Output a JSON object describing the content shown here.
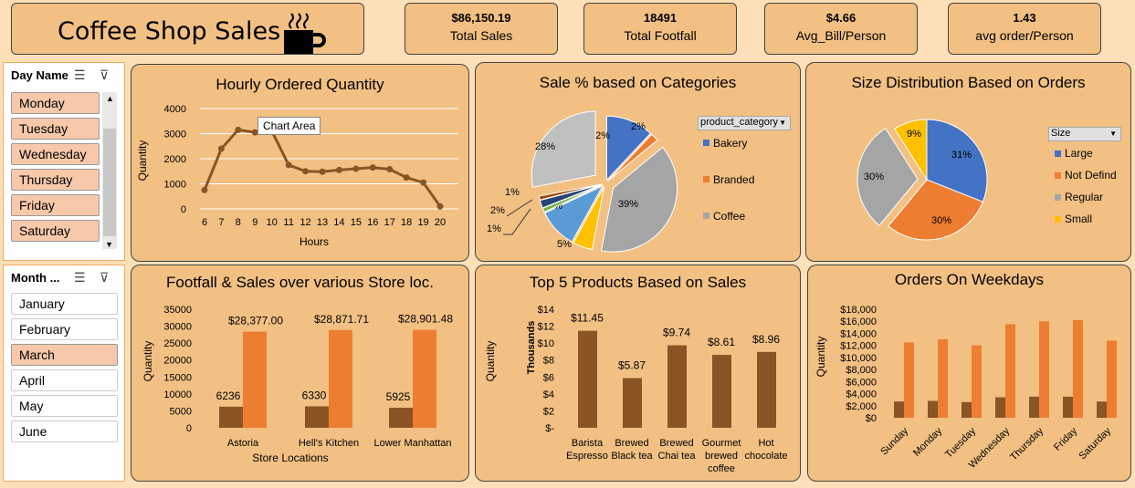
{
  "header": {
    "title": "Coffee Shop Sales",
    "icon": "coffee-cup-icon"
  },
  "kpis": [
    {
      "value": "$86,150.19",
      "label": "Total Sales"
    },
    {
      "value": "18491",
      "label": "Total Footfall"
    },
    {
      "value": "$4.66",
      "label": "Avg_Bill/Person"
    },
    {
      "value": "1.43",
      "label": "avg order/Person"
    }
  ],
  "slicers": {
    "day": {
      "title": "Day Name",
      "items": [
        "Monday",
        "Tuesday",
        "Wednesday",
        "Thursday",
        "Friday",
        "Saturday"
      ]
    },
    "month": {
      "title": "Month ...",
      "items": [
        "January",
        "February",
        "March",
        "April",
        "May",
        "June"
      ],
      "selected": "March"
    }
  },
  "hourly": {
    "title": "Hourly Ordered Quantity",
    "tooltip": "Chart Area"
  },
  "categories": {
    "title": "Sale % based on Categories",
    "legend_header": "product_category"
  },
  "size": {
    "title": "Size Distribution Based on Orders",
    "legend_header": "Size"
  },
  "footfall": {
    "title": "Footfall & Sales over various Store loc."
  },
  "top5": {
    "title": "Top 5 Products Based on Sales"
  },
  "weekdays": {
    "title": "Orders On Weekdays"
  },
  "colors": {
    "brown": "#8b5425",
    "orange": "#ed7d31",
    "blue": "#4472c4",
    "gray": "#a5a5a5",
    "gold": "#ffc000",
    "panel": "#f2c083",
    "bg": "#fde0b8"
  },
  "chart_data": [
    {
      "type": "line",
      "title": "Hourly Ordered Quantity",
      "xlabel": "Hours",
      "ylabel": "Quantity",
      "ylim": [
        0,
        4000
      ],
      "x": [
        6,
        7,
        8,
        9,
        10,
        11,
        12,
        13,
        14,
        15,
        16,
        17,
        18,
        19,
        20
      ],
      "y": [
        750,
        2400,
        3150,
        3050,
        3100,
        1750,
        1500,
        1480,
        1550,
        1600,
        1650,
        1580,
        1250,
        1050,
        100
      ]
    },
    {
      "type": "pie",
      "title": "Sale % based on Categories",
      "slices": [
        {
          "label": "12%",
          "value": 12
        },
        {
          "label": "2%",
          "value": 2
        },
        {
          "label": "39%",
          "value": 39
        },
        {
          "label": "5%",
          "value": 5
        },
        {
          "label": "10%",
          "value": 10
        },
        {
          "label": "1%",
          "value": 1
        },
        {
          "label": "2%",
          "value": 2
        },
        {
          "label": "1%",
          "value": 1
        },
        {
          "label": "28%",
          "value": 28
        }
      ],
      "legend": [
        "Bakery",
        "Branded",
        "Coffee"
      ]
    },
    {
      "type": "pie",
      "title": "Size Distribution Based on Orders",
      "slices": [
        {
          "name": "Large",
          "value": 31
        },
        {
          "name": "Not Defind",
          "value": 30
        },
        {
          "name": "Regular",
          "value": 30
        },
        {
          "name": "Small",
          "value": 9
        }
      ]
    },
    {
      "type": "bar",
      "title": "Footfall & Sales over various Store loc.",
      "xlabel": "Store Locations",
      "ylabel": "Quantity",
      "ylim": [
        0,
        35000
      ],
      "categories": [
        "Astoria",
        "Hell's Kitchen",
        "Lower Manhattan"
      ],
      "series": [
        {
          "values": [
            6236,
            6330,
            5925
          ],
          "labels": [
            "6236",
            "6330",
            "5925"
          ]
        },
        {
          "values": [
            28377,
            28871.71,
            28901.48
          ],
          "labels": [
            "$28,377.00",
            "$28,871.71",
            "$28,901.48"
          ]
        }
      ],
      "yticks": [
        "0",
        "5000",
        "10000",
        "15000",
        "20000",
        "25000",
        "30000",
        "35000"
      ]
    },
    {
      "type": "bar",
      "title": "Top 5 Products Based on Sales",
      "ylabel": "Quantity",
      "ylabel2": "Thousands",
      "ylim": [
        0,
        14
      ],
      "categories": [
        [
          "Barista",
          "Espresso"
        ],
        [
          "Brewed",
          "Black tea"
        ],
        [
          "Brewed",
          "Chai tea"
        ],
        [
          "Gourmet",
          "brewed",
          "coffee"
        ],
        [
          "Hot",
          "chocolate"
        ]
      ],
      "values": [
        11.45,
        5.87,
        9.74,
        8.61,
        8.96
      ],
      "labels": [
        "$11.45",
        "$5.87",
        "$9.74",
        "$8.61",
        "$8.96"
      ],
      "yticks": [
        "$-",
        "$2",
        "$4",
        "$6",
        "$8",
        "$10",
        "$12",
        "$14"
      ]
    },
    {
      "type": "bar",
      "title": "Orders On Weekdays",
      "ylabel": "Quantity",
      "ylim": [
        0,
        18000
      ],
      "categories": [
        "Sunday",
        "Monday",
        "Tuesday",
        "Wednesday",
        "Thursday",
        "Friday",
        "Saturday"
      ],
      "series": [
        {
          "values": [
            2700,
            2800,
            2600,
            3400,
            3500,
            3500,
            2700
          ]
        },
        {
          "values": [
            12500,
            13000,
            12000,
            15500,
            16000,
            16200,
            12800
          ]
        }
      ],
      "yticks": [
        "$0",
        "$2,000",
        "$4,000",
        "$6,000",
        "$8,000",
        "$10,000",
        "$12,000",
        "$14,000",
        "$16,000",
        "$18,000"
      ]
    }
  ]
}
